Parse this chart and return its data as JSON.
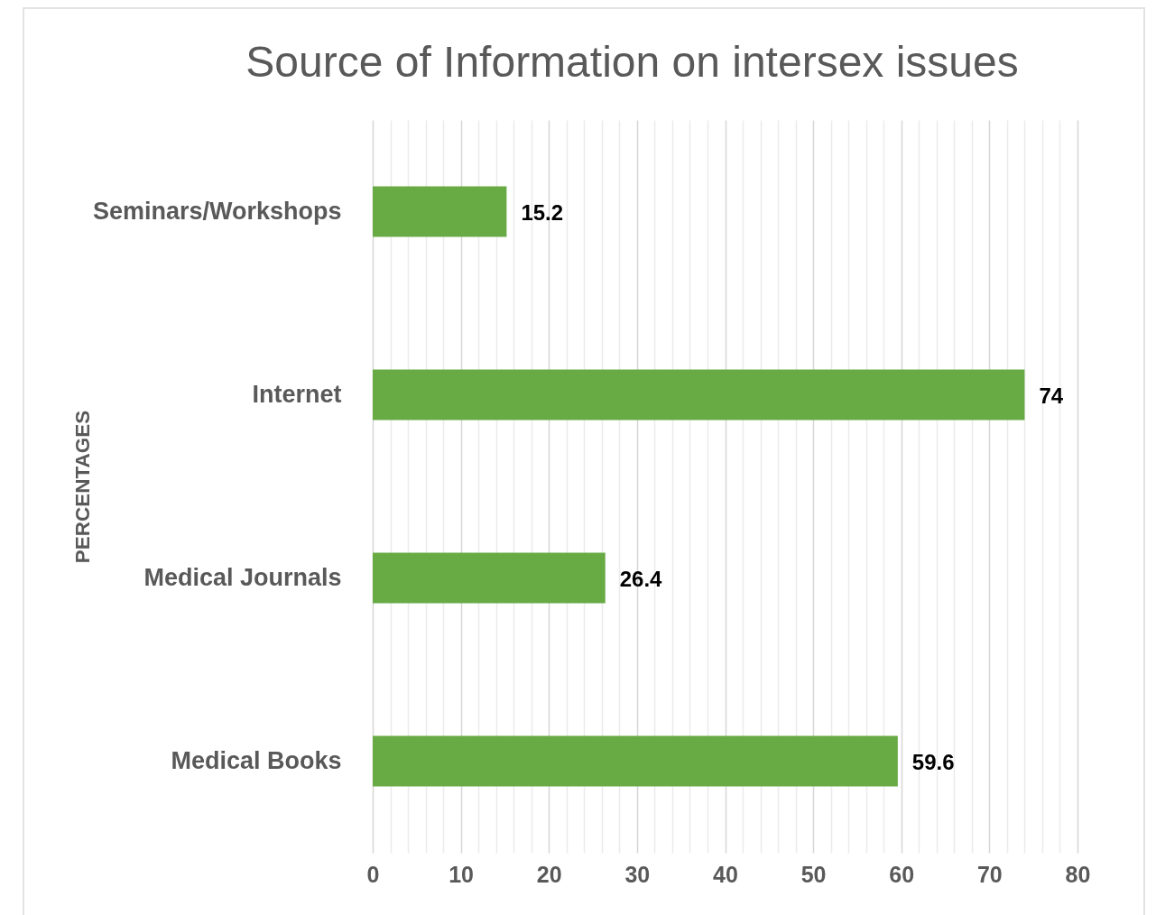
{
  "chart_data": {
    "type": "bar",
    "orientation": "horizontal",
    "title": "Source of Information on intersex issues",
    "ylabel": "PERCENTAGES",
    "categories": [
      "Seminars/Workshops",
      "Internet",
      "Medical Journals",
      "Medical Books"
    ],
    "values": [
      15.2,
      74,
      26.4,
      59.6
    ],
    "color": "#68aa44",
    "data_labels": true,
    "xlim": [
      0,
      80
    ],
    "xticks": [
      0,
      {
        "value": 2,
        "label": null
      },
      {
        "value": 4,
        "label": null
      },
      {
        "value": 6,
        "label": null
      },
      {
        "value": 8,
        "label": null
      },
      10,
      {
        "value": 12,
        "label": null
      },
      {
        "value": 14,
        "label": null
      },
      {
        "value": 16,
        "label": null
      },
      {
        "value": 18,
        "label": null
      },
      20,
      {
        "value": 22,
        "label": null
      },
      {
        "value": 24,
        "label": null
      },
      {
        "value": 26,
        "label": null
      },
      {
        "value": 28,
        "label": null
      },
      30,
      {
        "value": 32,
        "label": null
      },
      {
        "value": 34,
        "label": null
      },
      {
        "value": 36,
        "label": null
      },
      {
        "value": 38,
        "label": null
      },
      40,
      {
        "value": 42,
        "label": null
      },
      {
        "value": 44,
        "label": null
      },
      {
        "value": 46,
        "label": null
      },
      {
        "value": 48,
        "label": null
      },
      50,
      {
        "value": 52,
        "label": null
      },
      {
        "value": 54,
        "label": null
      },
      {
        "value": 56,
        "label": null
      },
      {
        "value": 58,
        "label": null
      },
      60,
      {
        "value": 62,
        "label": null
      },
      {
        "value": 64,
        "label": null
      },
      {
        "value": 66,
        "label": null
      },
      {
        "value": 68,
        "label": null
      },
      70,
      {
        "value": 72,
        "label": null
      },
      {
        "value": 74,
        "label": null
      },
      {
        "value": 76,
        "label": null
      },
      {
        "value": 78,
        "label": null
      },
      80
    ],
    "grid": "x"
  }
}
